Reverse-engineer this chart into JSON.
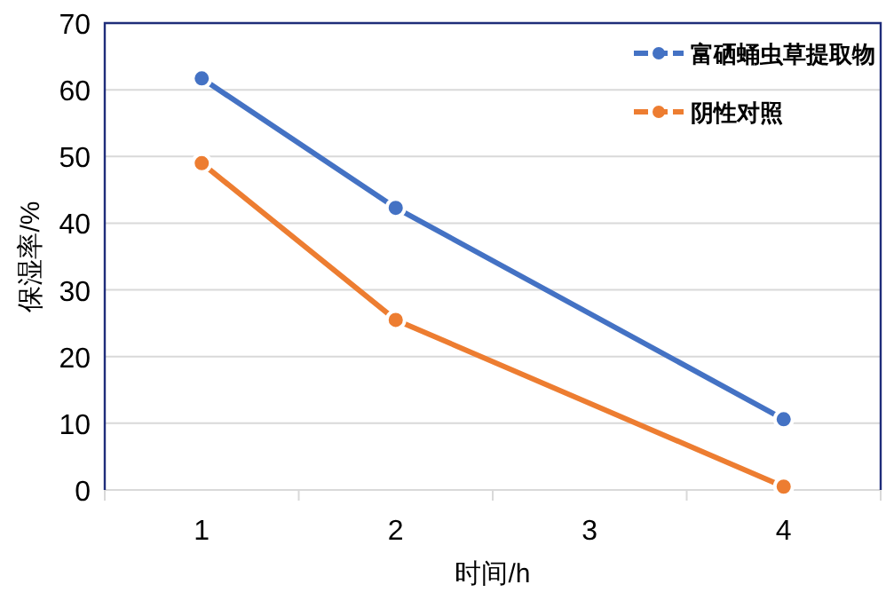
{
  "chart_data": {
    "type": "line",
    "xlabel": "时间/h",
    "ylabel": "保湿率/%",
    "xlim": [
      0.5,
      4.5
    ],
    "xticks": [
      {
        "value": 0.5,
        "label": null
      },
      1,
      {
        "value": 1.5,
        "label": null
      },
      2,
      {
        "value": 2.5,
        "label": null
      },
      3,
      {
        "value": 3.5,
        "label": null
      },
      4,
      {
        "value": 4.5,
        "label": null
      }
    ],
    "ylim": [
      0,
      70
    ],
    "yticks": [
      0,
      10,
      20,
      30,
      40,
      50,
      60,
      70
    ],
    "grid": "y",
    "legend": "top right",
    "marker": "circle",
    "line_style": "solid",
    "series": [
      {
        "name": "富硒蛹虫草提取物",
        "color": "#4472c4",
        "x": [
          1,
          2,
          4
        ],
        "values": [
          61.7,
          42.3,
          10.6
        ]
      },
      {
        "name": "阴性对照",
        "color": "#ed7d31",
        "x": [
          1,
          2,
          4
        ],
        "values": [
          49.0,
          25.5,
          0.5
        ]
      }
    ]
  }
}
